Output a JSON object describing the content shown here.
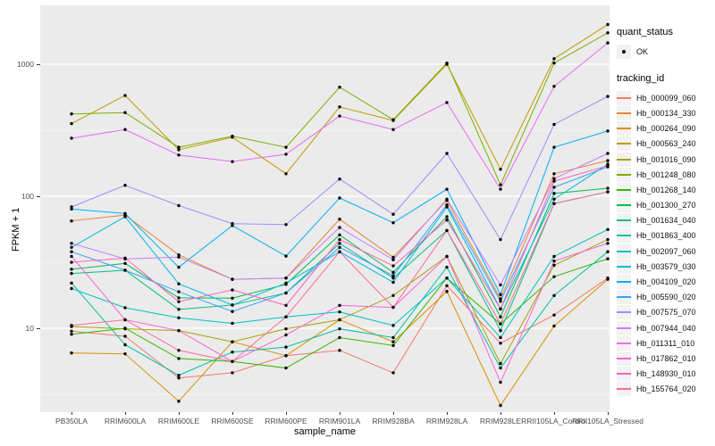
{
  "figure": {
    "background": "#FFFFFF",
    "panel_background": "#EBEBEB",
    "gridline_color": "#FFFFFF",
    "axis_text_color": "#4D4D4D"
  },
  "axes": {
    "x_title": "sample_name",
    "y_title": "FPKM + 1"
  },
  "legend": {
    "quant_status": {
      "title": "quant_status",
      "items": [
        {
          "label": "OK",
          "marker": "point",
          "color": "#000000"
        }
      ]
    },
    "tracking_id": {
      "title": "tracking_id",
      "key_background": "#F2F2F2"
    }
  },
  "chart_data": {
    "type": "line",
    "title": "",
    "xlabel": "sample_name",
    "ylabel": "FPKM + 1",
    "y_scale": "log10",
    "ylim": [
      2.4,
      2600
    ],
    "y_ticks": [
      10,
      100,
      1000
    ],
    "y_minor_ticks": [
      3.1623,
      31.623,
      316.23
    ],
    "grid": true,
    "legend_position": "right",
    "point_marker": {
      "shape": "circle",
      "color": "#000000"
    },
    "categories": [
      "PB350LA",
      "RRIM600LA",
      "RRIM600LE",
      "RRIM600SE",
      "RRIM600PE",
      "RRIM901LA",
      "RRIM928BA",
      "RRIM928LA",
      "RRIM928LE",
      "RRII105LA_Control",
      "RRII105LA_Stressed"
    ],
    "series": [
      {
        "name": "Hb_000099_060",
        "color": "#F8766D",
        "values": [
          9.5,
          8.7,
          4.2,
          4.6,
          6.2,
          6.8,
          4.6,
          21,
          7.7,
          12.6,
          24
        ]
      },
      {
        "name": "Hb_000134_330",
        "color": "#EA8331",
        "values": [
          65,
          72,
          36,
          23.5,
          24,
          67,
          34.5,
          93,
          16.7,
          148,
          186
        ]
      },
      {
        "name": "Hb_000264_090",
        "color": "#D89000",
        "values": [
          6.5,
          6.4,
          2.8,
          7.9,
          6.2,
          11.6,
          7.9,
          19,
          2.6,
          10.4,
          23.5
        ]
      },
      {
        "name": "Hb_000563_240",
        "color": "#C09B00",
        "values": [
          355,
          580,
          225,
          280,
          148,
          475,
          375,
          1000,
          160,
          1100,
          2000
        ]
      },
      {
        "name": "Hb_001016_090",
        "color": "#A3A500",
        "values": [
          10.3,
          9.9,
          9.6,
          7.9,
          9.9,
          11.6,
          17.7,
          35,
          5.4,
          30,
          47
        ]
      },
      {
        "name": "Hb_001248_080",
        "color": "#7CAE00",
        "values": [
          420,
          430,
          235,
          285,
          235,
          670,
          380,
          1020,
          122,
          1020,
          1730
        ]
      },
      {
        "name": "Hb_001268_140",
        "color": "#39B600",
        "values": [
          9,
          10,
          5.9,
          5.6,
          5,
          8.5,
          7.4,
          24,
          10.8,
          24.6,
          33.6
        ]
      },
      {
        "name": "Hb_001300_270",
        "color": "#00BB4E",
        "values": [
          28,
          31,
          17,
          16.9,
          21.5,
          51,
          26.5,
          70,
          12.2,
          105,
          115
        ]
      },
      {
        "name": "Hb_001634_040",
        "color": "#00BF7D",
        "values": [
          26,
          27.5,
          13.9,
          15,
          18.5,
          44,
          24,
          55,
          9.6,
          88,
          108
        ]
      },
      {
        "name": "Hb_001863_400",
        "color": "#00C1A3",
        "values": [
          22,
          7.5,
          4.4,
          6.6,
          7.2,
          9.9,
          8.5,
          29,
          5,
          17.7,
          38
        ]
      },
      {
        "name": "Hb_002097_060",
        "color": "#00BFC4",
        "values": [
          20,
          14.3,
          12,
          10.9,
          12.2,
          13.3,
          10.5,
          24,
          8.5,
          35,
          56
        ]
      },
      {
        "name": "Hb_003579_030",
        "color": "#00BAE0",
        "values": [
          41,
          70,
          21.7,
          15,
          22,
          38,
          22.3,
          83,
          14,
          95,
          175
        ]
      },
      {
        "name": "Hb_004109_020",
        "color": "#00B0F6",
        "values": [
          80,
          74,
          29,
          60,
          35.2,
          97,
          63,
          113,
          18,
          235,
          312
        ]
      },
      {
        "name": "Hb_005590_020",
        "color": "#35A2FF",
        "values": [
          38,
          27.5,
          18.9,
          13.4,
          18.5,
          41,
          25,
          86,
          16,
          117,
          167
        ]
      },
      {
        "name": "Hb_007575_070",
        "color": "#9590FF",
        "values": [
          83,
          121,
          85,
          62,
          61,
          135,
          73,
          211,
          47,
          350,
          570
        ]
      },
      {
        "name": "Hb_007944_040",
        "color": "#C77CFF",
        "values": [
          44,
          33.5,
          34.6,
          23.5,
          24,
          58,
          33,
          95,
          21.3,
          136,
          211
        ]
      },
      {
        "name": "Hb_011311_010",
        "color": "#E76BF3",
        "values": [
          275,
          320,
          205,
          183,
          208,
          405,
          320,
          513,
          113,
          680,
          1450
        ]
      },
      {
        "name": "Hb_017862_010",
        "color": "#FA62DB",
        "values": [
          35,
          11.6,
          9.6,
          5.6,
          8.9,
          14.9,
          14.4,
          35,
          3.9,
          32.3,
          44
        ]
      },
      {
        "name": "Hb_148930_010",
        "color": "#FF62BC",
        "values": [
          31.6,
          34,
          15.9,
          19.5,
          14.9,
          47,
          29.7,
          66,
          14,
          130,
          170
        ]
      },
      {
        "name": "Hb_155764_020",
        "color": "#FF6A98",
        "values": [
          10.5,
          11.6,
          6.8,
          5.6,
          12.2,
          38,
          14.4,
          55,
          10.8,
          88,
          108
        ]
      }
    ]
  }
}
